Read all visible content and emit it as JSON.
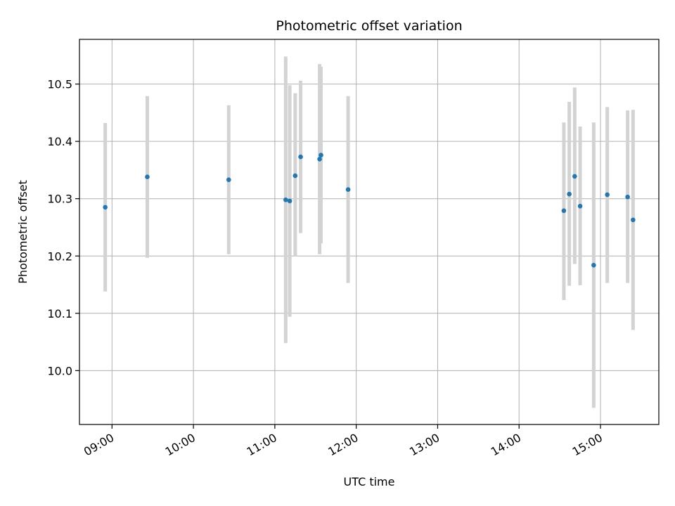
{
  "chart_data": {
    "type": "scatter",
    "title": "Photometric offset variation",
    "xlabel": "UTC time",
    "ylabel": "Photometric offset",
    "x_ticks": [
      "09:00",
      "10:00",
      "11:00",
      "12:00",
      "13:00",
      "14:00",
      "15:00"
    ],
    "y_ticks": [
      "10.0",
      "10.1",
      "10.2",
      "10.3",
      "10.4",
      "10.5"
    ],
    "xlim": [
      "08:36",
      "15:43"
    ],
    "ylim": [
      9.906,
      10.578
    ],
    "grid": true,
    "marker_color": "#1f77b4",
    "errorbar_color": "#d3d3d3",
    "points": [
      {
        "time": "08:55",
        "y": 10.285,
        "low": 10.138,
        "high": 10.432
      },
      {
        "time": "09:26",
        "y": 10.338,
        "low": 10.197,
        "high": 10.479
      },
      {
        "time": "10:26",
        "y": 10.333,
        "low": 10.203,
        "high": 10.463
      },
      {
        "time": "11:08",
        "y": 10.298,
        "low": 10.048,
        "high": 10.548
      },
      {
        "time": "11:11",
        "y": 10.296,
        "low": 10.094,
        "high": 10.498
      },
      {
        "time": "11:15",
        "y": 10.34,
        "low": 10.2,
        "high": 10.484
      },
      {
        "time": "11:19",
        "y": 10.373,
        "low": 10.24,
        "high": 10.506
      },
      {
        "time": "11:33",
        "y": 10.369,
        "low": 10.203,
        "high": 10.535
      },
      {
        "time": "11:34",
        "y": 10.376,
        "low": 10.222,
        "high": 10.53
      },
      {
        "time": "11:54",
        "y": 10.316,
        "low": 10.153,
        "high": 10.479
      },
      {
        "time": "14:33",
        "y": 10.279,
        "low": 10.123,
        "high": 10.433
      },
      {
        "time": "14:37",
        "y": 10.308,
        "low": 10.148,
        "high": 10.469
      },
      {
        "time": "14:41",
        "y": 10.339,
        "low": 10.186,
        "high": 10.494
      },
      {
        "time": "14:45",
        "y": 10.287,
        "low": 10.149,
        "high": 10.426
      },
      {
        "time": "14:55",
        "y": 10.184,
        "low": 9.935,
        "high": 10.433
      },
      {
        "time": "15:05",
        "y": 10.307,
        "low": 10.153,
        "high": 10.46
      },
      {
        "time": "15:20",
        "y": 10.303,
        "low": 10.153,
        "high": 10.454
      },
      {
        "time": "15:24",
        "y": 10.263,
        "low": 10.071,
        "high": 10.455
      }
    ]
  }
}
